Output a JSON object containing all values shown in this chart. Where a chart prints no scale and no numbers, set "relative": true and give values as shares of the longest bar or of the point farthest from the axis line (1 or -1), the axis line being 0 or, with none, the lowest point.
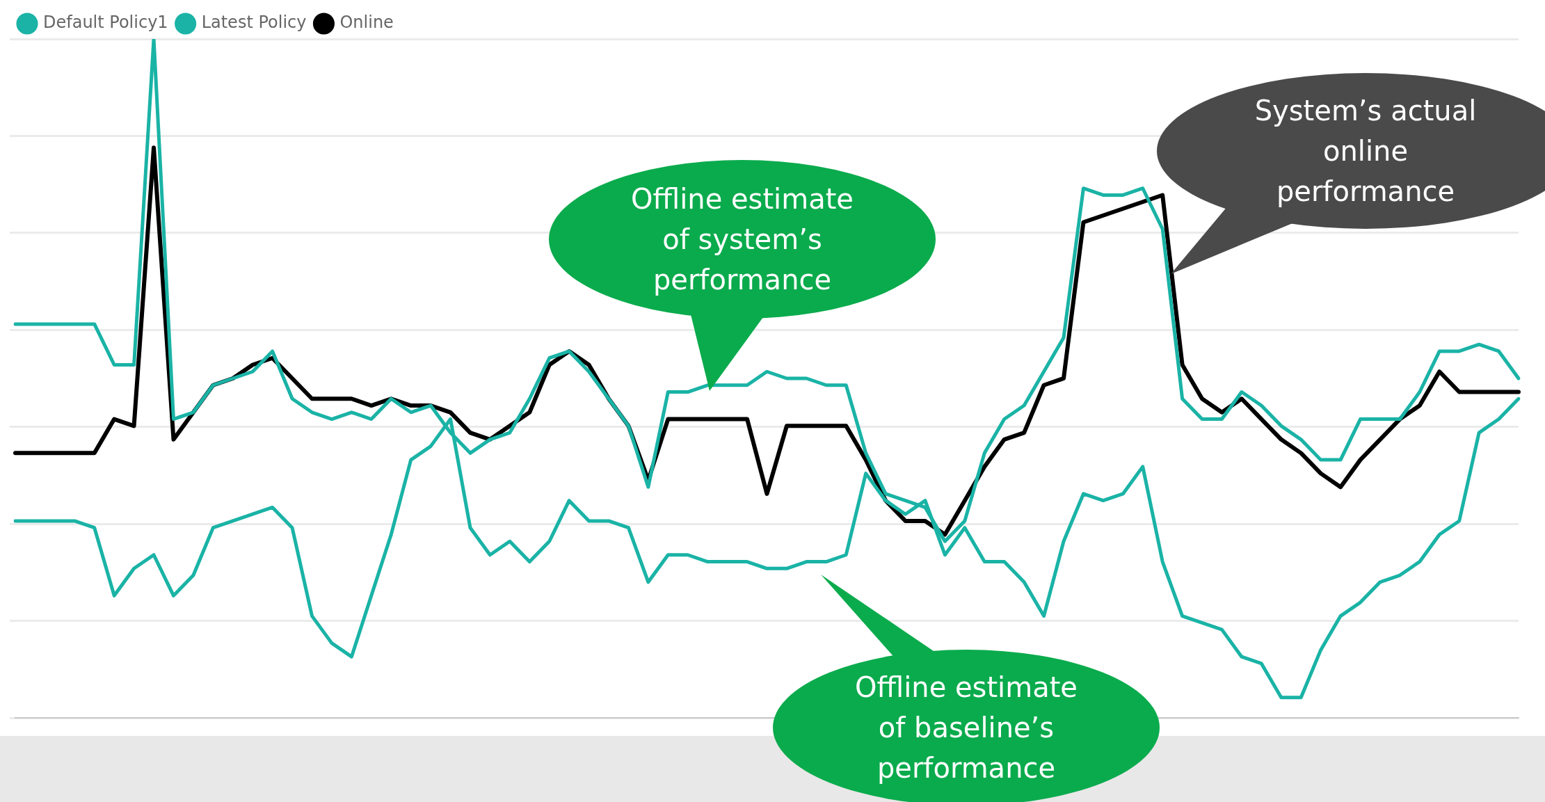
{
  "chart_data": {
    "type": "line",
    "relative": true,
    "grid": "y",
    "legend": "top left",
    "marker": "none",
    "line_style": "solid",
    "categories": [
      null,
      null,
      null,
      null,
      null,
      null,
      null,
      null,
      null,
      null,
      null,
      null,
      null,
      null,
      null,
      null,
      null,
      null,
      null,
      null,
      null,
      null,
      null,
      null,
      null,
      null,
      null,
      null,
      null,
      null,
      null,
      null,
      null,
      null,
      null,
      null,
      null,
      null,
      null,
      null,
      null,
      null,
      null,
      null,
      null,
      null,
      null,
      null,
      null,
      null,
      null,
      null,
      null,
      null,
      null,
      null,
      null,
      null,
      null,
      null,
      null,
      null,
      null,
      null,
      null,
      null,
      null,
      null,
      null,
      null,
      null,
      null,
      null,
      null,
      null,
      null,
      null
    ],
    "series": [
      {
        "name": "Default Policy1",
        "color": "#1ab3a6",
        "values": [
          0.29,
          0.29,
          0.29,
          0.29,
          0.28,
          0.18,
          0.22,
          0.24,
          0.18,
          0.21,
          0.28,
          0.29,
          0.3,
          0.31,
          0.28,
          0.15,
          0.11,
          0.09,
          0.18,
          0.27,
          0.38,
          0.4,
          0.44,
          0.28,
          0.24,
          0.26,
          0.23,
          0.26,
          0.32,
          0.29,
          0.29,
          0.28,
          0.2,
          0.24,
          0.24,
          0.23,
          0.23,
          0.23,
          0.22,
          0.22,
          0.23,
          0.23,
          0.24,
          0.36,
          0.32,
          0.3,
          0.32,
          0.24,
          0.28,
          0.23,
          0.23,
          0.2,
          0.15,
          0.26,
          0.33,
          0.32,
          0.33,
          0.37,
          0.23,
          0.15,
          0.14,
          0.13,
          0.09,
          0.08,
          0.03,
          0.03,
          0.1,
          0.15,
          0.17,
          0.2,
          0.21,
          0.23,
          0.27,
          0.29,
          0.42,
          0.44,
          0.47
        ]
      },
      {
        "name": "Latest Policy",
        "color": "#1ab3a6",
        "values": [
          0.58,
          0.58,
          0.58,
          0.58,
          0.58,
          0.52,
          0.52,
          1,
          0.44,
          0.45,
          0.49,
          0.5,
          0.51,
          0.54,
          0.47,
          0.45,
          0.44,
          0.45,
          0.44,
          0.47,
          0.45,
          0.46,
          0.42,
          0.39,
          0.41,
          0.42,
          0.47,
          0.53,
          0.54,
          0.51,
          0.47,
          0.43,
          0.34,
          0.48,
          0.48,
          0.49,
          0.49,
          0.49,
          0.51,
          0.5,
          0.5,
          0.49,
          0.49,
          0.39,
          0.33,
          0.32,
          0.31,
          0.26,
          0.29,
          0.39,
          0.44,
          0.46,
          0.51,
          0.56,
          0.78,
          0.77,
          0.77,
          0.78,
          0.72,
          0.47,
          0.44,
          0.44,
          0.48,
          0.46,
          0.43,
          0.41,
          0.38,
          0.38,
          0.44,
          0.44,
          0.44,
          0.48,
          0.54,
          0.54,
          0.55,
          0.54,
          0.5
        ]
      },
      {
        "name": "Online",
        "color": "#000000",
        "values": [
          0.39,
          0.39,
          0.39,
          0.39,
          0.39,
          0.44,
          0.43,
          0.84,
          0.41,
          0.45,
          0.49,
          0.5,
          0.52,
          0.53,
          0.5,
          0.47,
          0.47,
          0.47,
          0.46,
          0.47,
          0.46,
          0.46,
          0.45,
          0.42,
          0.41,
          0.43,
          0.45,
          0.52,
          0.54,
          0.52,
          0.47,
          0.43,
          0.35,
          0.44,
          0.44,
          0.44,
          0.44,
          0.44,
          0.33,
          0.43,
          0.43,
          0.43,
          0.43,
          0.38,
          0.32,
          0.29,
          0.29,
          0.27,
          0.32,
          0.37,
          0.41,
          0.42,
          0.49,
          0.5,
          0.73,
          0.74,
          0.75,
          0.76,
          0.77,
          0.52,
          0.47,
          0.45,
          0.47,
          0.44,
          0.41,
          0.39,
          0.36,
          0.34,
          0.38,
          0.41,
          0.44,
          0.46,
          0.51,
          0.48,
          0.48,
          0.48,
          0.48
        ]
      }
    ],
    "annotations": [
      "Offline estimate of system’s performance",
      "Offline estimate of baseline’s performance",
      "System’s actual online performance"
    ]
  }
}
